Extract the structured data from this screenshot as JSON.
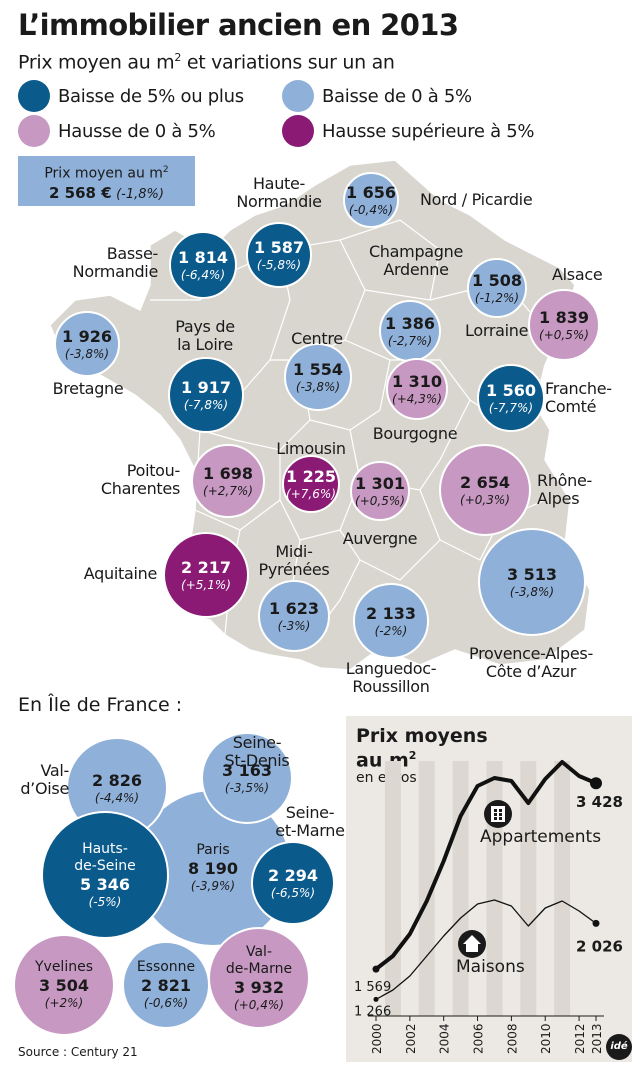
{
  "title": "L’immobilier ancien en 2013",
  "subtitle": {
    "pre": "Prix moyen au m",
    "sup": "2",
    "post": " et variations sur un an"
  },
  "legend": [
    {
      "label": "Baisse de 5% ou plus",
      "color": "#0b5a8c"
    },
    {
      "label": "Baisse de 0 à 5%",
      "color": "#8fb0d8"
    },
    {
      "label": "Hausse de 0 à 5%",
      "color": "#c799c2"
    },
    {
      "label": "Hausse supérieure à 5%",
      "color": "#8a1a74"
    }
  ],
  "average": {
    "label_pre": "Prix moyen au m",
    "label_sup": "2",
    "value": "2 568 €",
    "change": "(-1,8%)"
  },
  "regions": [
    {
      "name": "Haute-Normandie",
      "label": "Haute-\nNormandie",
      "value": "1 587",
      "change": "(-5,8%)",
      "cat": 0
    },
    {
      "name": "Nord / Picardie",
      "label": "Nord / Picardie",
      "value": "1 656",
      "change": "(-0,4%)",
      "cat": 1
    },
    {
      "name": "Basse-Normandie",
      "label": "Basse-\nNormandie",
      "value": "1 814",
      "change": "(-6,4%)",
      "cat": 0
    },
    {
      "name": "Champagne Ardenne",
      "label": "Champagne\nArdenne",
      "value": "1 386",
      "change": "(-2,7%)",
      "cat": 1
    },
    {
      "name": "Lorraine",
      "label": "Lorraine",
      "value": "1 508",
      "change": "(-1,2%)",
      "cat": 1
    },
    {
      "name": "Alsace",
      "label": "Alsace",
      "value": "1 839",
      "change": "(+0,5%)",
      "cat": 2
    },
    {
      "name": "Bretagne",
      "label": "Bretagne",
      "value": "1 926",
      "change": "(-3,8%)",
      "cat": 1
    },
    {
      "name": "Pays de la Loire",
      "label": "Pays de\nla Loire",
      "value": "1 917",
      "change": "(-7,8%)",
      "cat": 0
    },
    {
      "name": "Centre",
      "label": "Centre",
      "value": "1 554",
      "change": "(-3,8%)",
      "cat": 1
    },
    {
      "name": "Bourgogne",
      "label": "Bourgogne",
      "value": "1 310",
      "change": "(+4,3%)",
      "cat": 2
    },
    {
      "name": "Franche-Comté",
      "label": "Franche-\nComté",
      "value": "1 560",
      "change": "(-7,7%)",
      "cat": 0
    },
    {
      "name": "Poitou-Charentes",
      "label": "Poitou-\nCharentes",
      "value": "1 698",
      "change": "(+2,7%)",
      "cat": 2
    },
    {
      "name": "Limousin",
      "label": "Limousin",
      "value": "1 225",
      "change": "(+7,6%)",
      "cat": 3
    },
    {
      "name": "Auvergne",
      "label": "Auvergne",
      "value": "1 301",
      "change": "(+0,5%)",
      "cat": 2
    },
    {
      "name": "Rhône-Alpes",
      "label": "Rhône-\nAlpes",
      "value": "2 654",
      "change": "(+0,3%)",
      "cat": 2
    },
    {
      "name": "Aquitaine",
      "label": "Aquitaine",
      "value": "2 217",
      "change": "(+5,1%)",
      "cat": 3
    },
    {
      "name": "Midi-Pyrénées",
      "label": "Midi-\nPyrénées",
      "value": "1 623",
      "change": "(-3%)",
      "cat": 1
    },
    {
      "name": "Languedoc-Roussillon",
      "label": "Languedoc-\nRoussillon",
      "value": "2 133",
      "change": "(-2%)",
      "cat": 1
    },
    {
      "name": "Provence-Alpes-Côte d'Azur",
      "label": "Provence-Alpes-\nCôte d’Azur",
      "value": "3 513",
      "change": "(-3,8%)",
      "cat": 1
    }
  ],
  "idf_title": "En Île de France :",
  "idf": [
    {
      "name": "Paris",
      "label": "Paris",
      "value": "8 190",
      "change": "(-3,9%)",
      "cat": 1
    },
    {
      "name": "Val-d'Oise",
      "label": "Val-\nd’Oise",
      "value": "2 826",
      "change": "(-4,4%)",
      "cat": 1
    },
    {
      "name": "Seine-St-Denis",
      "label": "Seine-\nSt-Denis",
      "value": "3 163",
      "change": "(-3,5%)",
      "cat": 1
    },
    {
      "name": "Hauts-de-Seine",
      "label": "Hauts-\nde-Seine",
      "value": "5 346",
      "change": "(-5%)",
      "cat": 0
    },
    {
      "name": "Seine-et-Marne",
      "label": "Seine-\net-Marne",
      "value": "2 294",
      "change": "(-6,5%)",
      "cat": 0
    },
    {
      "name": "Yvelines",
      "label": "Yvelines",
      "value": "3 504",
      "change": "(+2%)",
      "cat": 2
    },
    {
      "name": "Essonne",
      "label": "Essonne",
      "value": "2 821",
      "change": "(-0,6%)",
      "cat": 1
    },
    {
      "name": "Val-de-Marne",
      "label": "Val-\nde-Marne",
      "value": "3 932",
      "change": "(+0,4%)",
      "cat": 2
    }
  ],
  "chart_data": {
    "type": "line",
    "title": "Prix moyens au m²",
    "title_pre": "Prix moyens",
    "title_line2_pre": "au m",
    "title_sup": "2",
    "subtitle": "en euros",
    "x": [
      2000,
      2001,
      2002,
      2003,
      2004,
      2005,
      2006,
      2007,
      2008,
      2009,
      2010,
      2011,
      2012,
      2013
    ],
    "xticks": [
      "2000",
      "2002",
      "2004",
      "2006",
      "2008",
      "2010",
      "2012",
      "2013"
    ],
    "series": [
      {
        "name": "Appartements",
        "values": [
          1569,
          1700,
          1920,
          2250,
          2650,
          3100,
          3400,
          3480,
          3450,
          3230,
          3470,
          3640,
          3500,
          3428
        ],
        "start_label": "1 569",
        "end_label": "3 428",
        "icon": "building-icon"
      },
      {
        "name": "Maisons",
        "values": [
          1266,
          1360,
          1500,
          1700,
          1900,
          2080,
          2220,
          2260,
          2200,
          2000,
          2180,
          2250,
          2150,
          2026
        ],
        "start_label": "1 266",
        "end_label": "2 026",
        "icon": "house-icon"
      }
    ],
    "ylim": [
      1100,
      3800
    ],
    "grid": "vertical bands"
  },
  "source": "Source : Century 21",
  "logo_text": "idé"
}
